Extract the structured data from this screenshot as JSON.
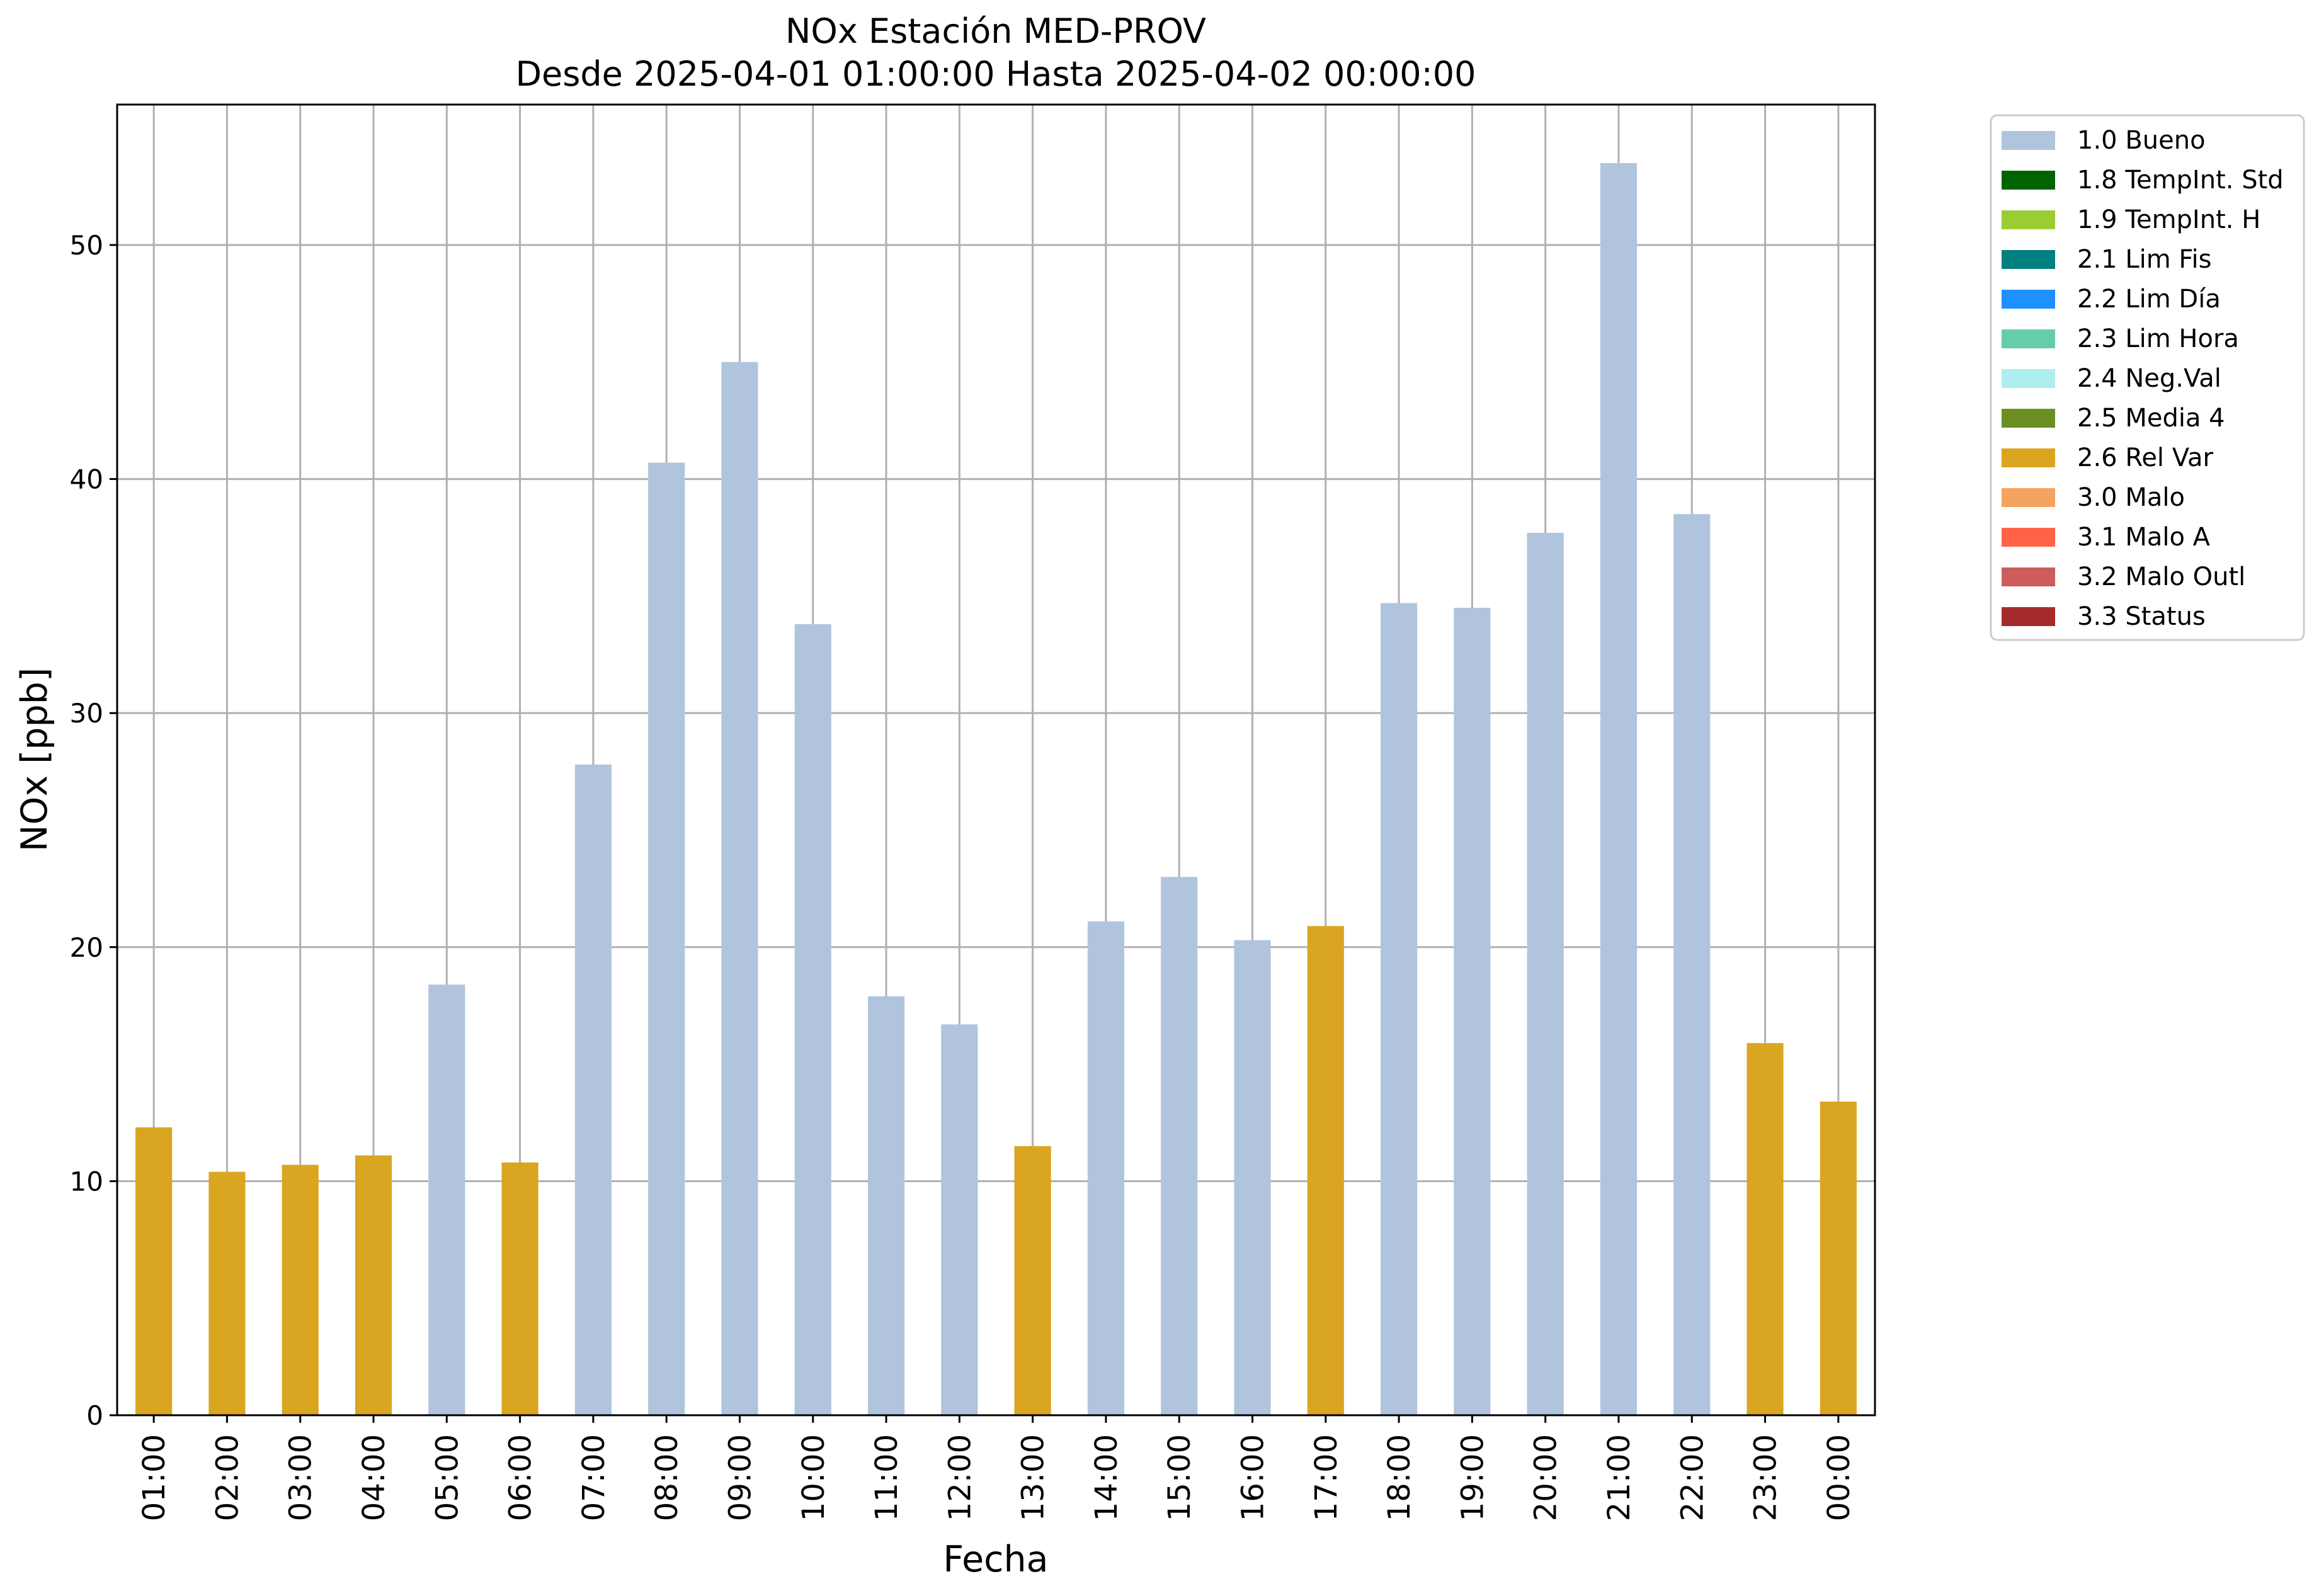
{
  "chart_data": {
    "type": "bar",
    "title": "NOx Estación MED-PROV",
    "subtitle": "Desde 2025-04-01 01:00:00 Hasta 2025-04-02 00:00:00",
    "xlabel": "Fecha",
    "ylabel": "NOx [ppb]",
    "ylim": [
      0,
      56
    ],
    "yticks": [
      0,
      10,
      20,
      30,
      40,
      50
    ],
    "grid": true,
    "legend_position": "outside-top-right",
    "categories": [
      "01:00",
      "02:00",
      "03:00",
      "04:00",
      "05:00",
      "06:00",
      "07:00",
      "08:00",
      "09:00",
      "10:00",
      "11:00",
      "12:00",
      "13:00",
      "14:00",
      "15:00",
      "16:00",
      "17:00",
      "18:00",
      "19:00",
      "20:00",
      "21:00",
      "22:00",
      "23:00",
      "00:00"
    ],
    "values": [
      12.3,
      10.4,
      10.7,
      11.1,
      18.4,
      10.8,
      27.8,
      40.7,
      45.0,
      33.8,
      17.9,
      16.7,
      11.5,
      21.1,
      23.0,
      20.3,
      20.9,
      34.7,
      34.5,
      37.7,
      53.5,
      38.5,
      15.9,
      13.4
    ],
    "flags": [
      "2.6",
      "2.6",
      "2.6",
      "2.6",
      "1.0",
      "2.6",
      "1.0",
      "1.0",
      "1.0",
      "1.0",
      "1.0",
      "1.0",
      "2.6",
      "1.0",
      "1.0",
      "1.0",
      "2.6",
      "1.0",
      "1.0",
      "1.0",
      "1.0",
      "1.0",
      "2.6",
      "2.6"
    ],
    "legend": [
      {
        "code": "1.0",
        "label": "1.0 Bueno",
        "color": "#b0c4de"
      },
      {
        "code": "1.8",
        "label": "1.8 TempInt. Std",
        "color": "#006400"
      },
      {
        "code": "1.9",
        "label": "1.9 TempInt. H",
        "color": "#9acd32"
      },
      {
        "code": "2.1",
        "label": "2.1 Lim Fis",
        "color": "#008080"
      },
      {
        "code": "2.2",
        "label": "2.2 Lim Día",
        "color": "#1e90ff"
      },
      {
        "code": "2.3",
        "label": "2.3 Lim Hora",
        "color": "#66cdaa"
      },
      {
        "code": "2.4",
        "label": "2.4 Neg.Val",
        "color": "#afeeee"
      },
      {
        "code": "2.5",
        "label": "2.5 Media 4",
        "color": "#6b8e23"
      },
      {
        "code": "2.6",
        "label": "2.6 Rel Var",
        "color": "#daa520"
      },
      {
        "code": "3.0",
        "label": "3.0 Malo",
        "color": "#f4a460"
      },
      {
        "code": "3.1",
        "label": "3.1 Malo A",
        "color": "#ff6347"
      },
      {
        "code": "3.2",
        "label": "3.2 Malo Outl",
        "color": "#cd5c5c"
      },
      {
        "code": "3.3",
        "label": "3.3 Status",
        "color": "#a52a2a"
      }
    ]
  }
}
